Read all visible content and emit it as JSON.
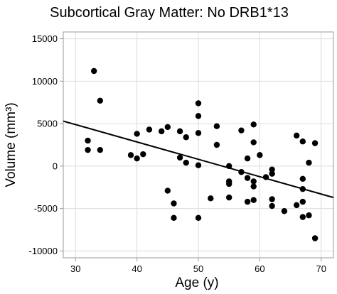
{
  "chart_data": {
    "type": "scatter",
    "title": "Subcortical Gray Matter: No DRB1*13",
    "xlabel": "Age (y)",
    "ylabel": "Volume (mm³)",
    "xlim": [
      28,
      72
    ],
    "ylim": [
      -10800,
      15800
    ],
    "xticks": [
      30,
      40,
      50,
      60,
      70
    ],
    "xtick_labels": [
      "30",
      "40",
      "50",
      "60",
      "70"
    ],
    "yticks": [
      -10000,
      -5000,
      0,
      5000,
      10000,
      15000
    ],
    "ytick_labels": [
      "-10000",
      "-5000",
      "0",
      "5000",
      "10000",
      "15000"
    ],
    "grid": true,
    "legend": "none",
    "colors": {
      "points": "#000000",
      "fit_line": "#000000",
      "grid": "#dcdcdc",
      "frame": "#9a9a9a"
    },
    "series": [
      {
        "points": [
          {
            "x": 32,
            "y": 3000
          },
          {
            "x": 32,
            "y": 1900
          },
          {
            "x": 33,
            "y": 11200
          },
          {
            "x": 34,
            "y": 7700
          },
          {
            "x": 34,
            "y": 1900
          },
          {
            "x": 39,
            "y": 1300
          },
          {
            "x": 40,
            "y": 3800
          },
          {
            "x": 40,
            "y": 900
          },
          {
            "x": 41,
            "y": 1400
          },
          {
            "x": 42,
            "y": 4300
          },
          {
            "x": 44,
            "y": 4100
          },
          {
            "x": 45,
            "y": 4600
          },
          {
            "x": 45,
            "y": -2900
          },
          {
            "x": 46,
            "y": -4400
          },
          {
            "x": 46,
            "y": -6100
          },
          {
            "x": 47,
            "y": 4100
          },
          {
            "x": 47,
            "y": 1000
          },
          {
            "x": 48,
            "y": 3400
          },
          {
            "x": 48,
            "y": 400
          },
          {
            "x": 50,
            "y": 7400
          },
          {
            "x": 50,
            "y": 5900
          },
          {
            "x": 50,
            "y": 3900
          },
          {
            "x": 50,
            "y": 100
          },
          {
            "x": 50,
            "y": -6100
          },
          {
            "x": 52,
            "y": -3800
          },
          {
            "x": 53,
            "y": 4700
          },
          {
            "x": 53,
            "y": 2500
          },
          {
            "x": 55,
            "y": 0
          },
          {
            "x": 55,
            "y": -1800
          },
          {
            "x": 55,
            "y": -2100
          },
          {
            "x": 55,
            "y": -3700
          },
          {
            "x": 57,
            "y": 4200
          },
          {
            "x": 57,
            "y": -700
          },
          {
            "x": 58,
            "y": 900
          },
          {
            "x": 58,
            "y": -4200
          },
          {
            "x": 58,
            "y": -1400
          },
          {
            "x": 59,
            "y": 4900
          },
          {
            "x": 59,
            "y": 2800
          },
          {
            "x": 59,
            "y": -1800
          },
          {
            "x": 59,
            "y": -2400
          },
          {
            "x": 59,
            "y": -4000
          },
          {
            "x": 60,
            "y": 1300
          },
          {
            "x": 61,
            "y": -1300
          },
          {
            "x": 62,
            "y": -400
          },
          {
            "x": 62,
            "y": -900
          },
          {
            "x": 62,
            "y": -3900
          },
          {
            "x": 62,
            "y": -4700
          },
          {
            "x": 64,
            "y": -5300
          },
          {
            "x": 66,
            "y": 3600
          },
          {
            "x": 66,
            "y": -4600
          },
          {
            "x": 67,
            "y": 2900
          },
          {
            "x": 67,
            "y": -1500
          },
          {
            "x": 67,
            "y": -2700
          },
          {
            "x": 67,
            "y": -4200
          },
          {
            "x": 67,
            "y": -6000
          },
          {
            "x": 68,
            "y": 400
          },
          {
            "x": 68,
            "y": -5800
          },
          {
            "x": 69,
            "y": 2700
          },
          {
            "x": 69,
            "y": -8500
          }
        ]
      }
    ],
    "fit_line": {
      "x": [
        28,
        72
      ],
      "y": [
        5300,
        -3700
      ]
    }
  }
}
